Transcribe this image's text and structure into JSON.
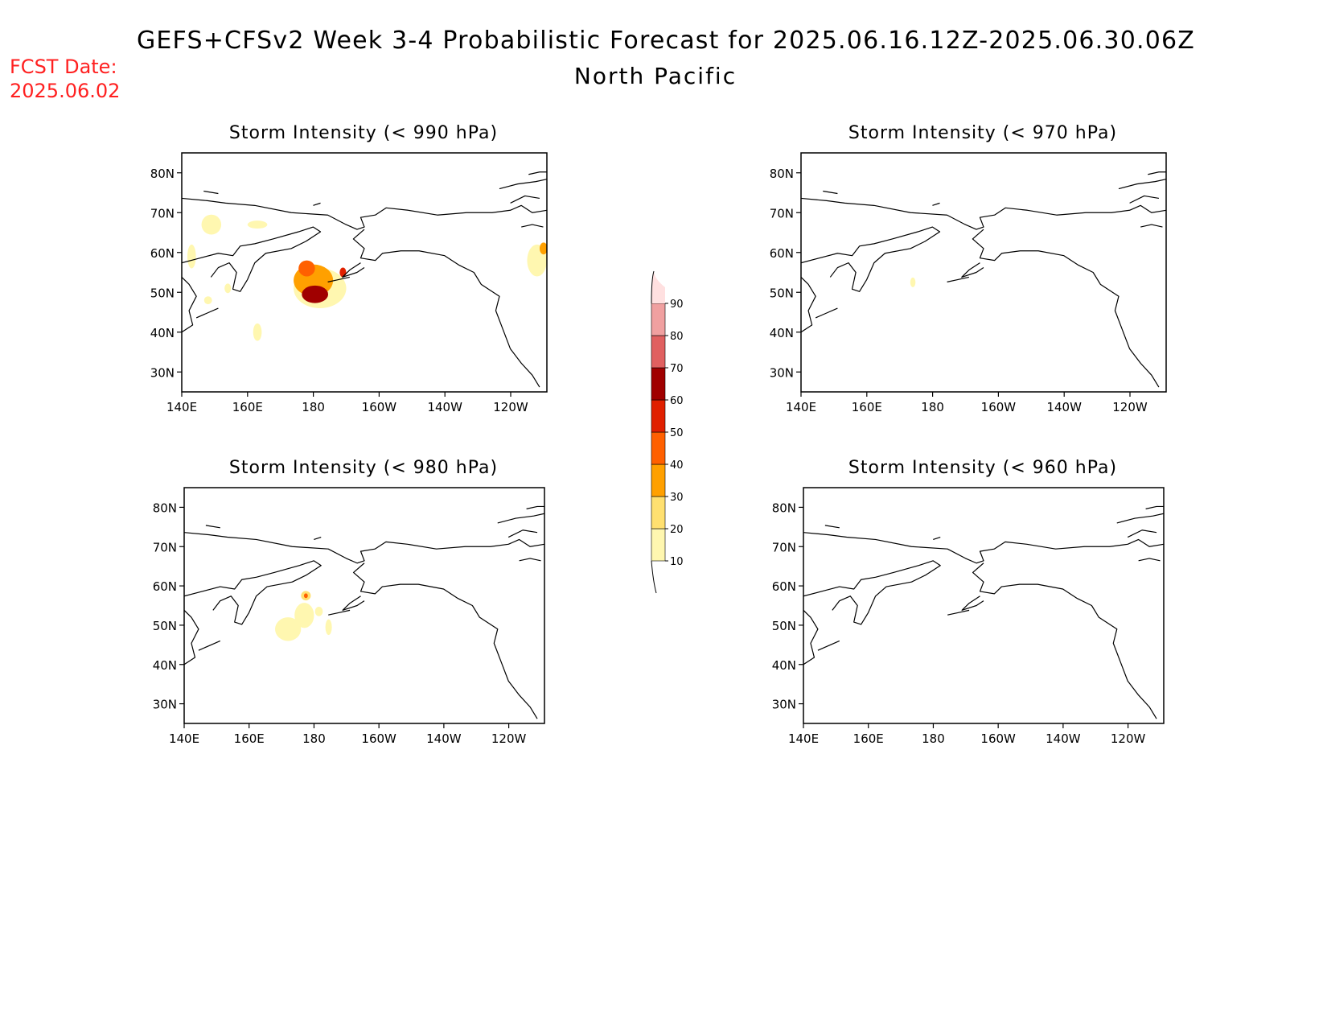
{
  "header": {
    "title": "GEFS+CFSv2 Week 3-4 Probabilistic Forecast for 2025.06.16.12Z-2025.06.30.06Z",
    "subtitle": "North Pacific",
    "fcst_label": "FCST Date:",
    "fcst_date": "2025.06.02"
  },
  "axis": {
    "x_ticks": [
      "140E",
      "160E",
      "180",
      "160W",
      "140W",
      "120W"
    ],
    "x_values": [
      140,
      160,
      180,
      200,
      220,
      240
    ],
    "y_ticks": [
      "80N",
      "70N",
      "60N",
      "50N",
      "40N",
      "30N"
    ],
    "y_values": [
      80,
      70,
      60,
      50,
      40,
      30
    ],
    "lon_range": [
      140,
      251
    ],
    "lat_range": [
      25,
      85
    ]
  },
  "colorbar": {
    "labels": [
      "90",
      "80",
      "70",
      "60",
      "50",
      "40",
      "30",
      "20",
      "10"
    ],
    "levels": [
      10,
      20,
      30,
      40,
      50,
      60,
      70,
      80,
      90
    ],
    "colors": [
      "#fff7b0",
      "#ffe070",
      "#ffa000",
      "#ff6000",
      "#e02000",
      "#a00000",
      "#e06060",
      "#f0a0a0",
      "#ffe0e0"
    ]
  },
  "panels": [
    {
      "id": "p990",
      "title": "Storm Intensity (< 990 hPa)",
      "blobs": [
        {
          "lon": 182,
          "lat": 51,
          "rx": 8,
          "ry": 5,
          "value": 15
        },
        {
          "lon": 180,
          "lat": 53,
          "rx": 6,
          "ry": 4,
          "value": 35
        },
        {
          "lon": 180.5,
          "lat": 49.5,
          "rx": 4,
          "ry": 2.2,
          "value": 65
        },
        {
          "lon": 178,
          "lat": 56,
          "rx": 2.5,
          "ry": 2,
          "value": 45
        },
        {
          "lon": 189,
          "lat": 55,
          "rx": 1,
          "ry": 1.2,
          "value": 55
        },
        {
          "lon": 149,
          "lat": 67,
          "rx": 3,
          "ry": 2.5,
          "value": 15
        },
        {
          "lon": 163,
          "lat": 67,
          "rx": 3,
          "ry": 1,
          "value": 15
        },
        {
          "lon": 143,
          "lat": 59,
          "rx": 1.3,
          "ry": 3,
          "value": 15
        },
        {
          "lon": 148,
          "lat": 48,
          "rx": 1.2,
          "ry": 1,
          "value": 15
        },
        {
          "lon": 154,
          "lat": 51,
          "rx": 1,
          "ry": 1.2,
          "value": 15
        },
        {
          "lon": 163,
          "lat": 40,
          "rx": 1.3,
          "ry": 2.2,
          "value": 15
        },
        {
          "lon": 248,
          "lat": 58,
          "rx": 3,
          "ry": 4,
          "value": 15
        },
        {
          "lon": 250,
          "lat": 61,
          "rx": 1.2,
          "ry": 1.5,
          "value": 35
        }
      ]
    },
    {
      "id": "p970",
      "title": "Storm Intensity (< 970 hPa)",
      "blobs": [
        {
          "lon": 174,
          "lat": 52.5,
          "rx": 0.8,
          "ry": 1.2,
          "value": 15
        }
      ]
    },
    {
      "id": "p980",
      "title": "Storm Intensity (< 980 hPa)",
      "blobs": [
        {
          "lon": 172,
          "lat": 49,
          "rx": 4,
          "ry": 3,
          "value": 15
        },
        {
          "lon": 177,
          "lat": 52.5,
          "rx": 3,
          "ry": 3.2,
          "value": 15
        },
        {
          "lon": 177.5,
          "lat": 57.5,
          "rx": 1.5,
          "ry": 1.2,
          "value": 20
        },
        {
          "lon": 177.5,
          "lat": 57.5,
          "rx": 0.6,
          "ry": 0.6,
          "value": 45
        },
        {
          "lon": 181.5,
          "lat": 53.5,
          "rx": 1.2,
          "ry": 1.2,
          "value": 15
        },
        {
          "lon": 184.5,
          "lat": 49.5,
          "rx": 1,
          "ry": 2,
          "value": 15
        }
      ]
    },
    {
      "id": "p960",
      "title": "Storm Intensity (< 960 hPa)",
      "blobs": []
    }
  ],
  "colors": {
    "fcst_text": "#ff2020",
    "ink": "#000000",
    "background": "#ffffff"
  }
}
